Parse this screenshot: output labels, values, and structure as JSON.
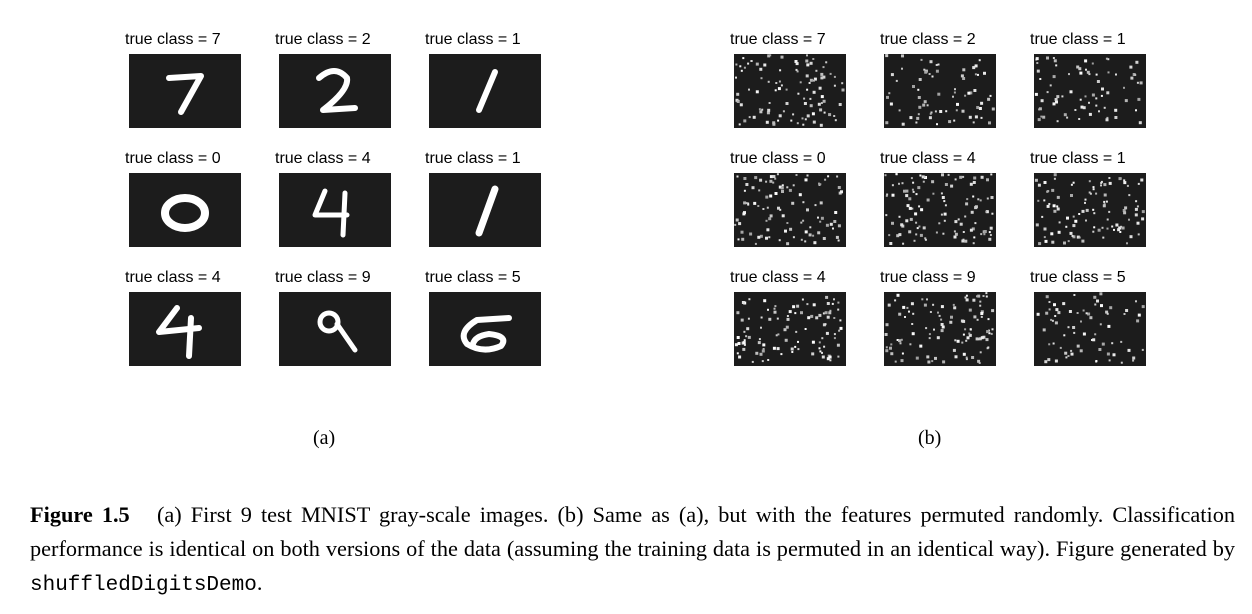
{
  "panel_a": {
    "caption": "(a)",
    "images": [
      {
        "label": "true class = 7",
        "digit": "7"
      },
      {
        "label": "true class = 2",
        "digit": "2"
      },
      {
        "label": "true class = 1",
        "digit": "1"
      },
      {
        "label": "true class = 0",
        "digit": "0"
      },
      {
        "label": "true class = 4",
        "digit": "4"
      },
      {
        "label": "true class = 1",
        "digit": "1"
      },
      {
        "label": "true class = 4",
        "digit": "4"
      },
      {
        "label": "true class = 9",
        "digit": "9"
      },
      {
        "label": "true class = 5",
        "digit": "5"
      }
    ]
  },
  "panel_b": {
    "caption": "(b)",
    "images": [
      {
        "label": "true class = 7"
      },
      {
        "label": "true class = 2"
      },
      {
        "label": "true class = 1"
      },
      {
        "label": "true class = 0"
      },
      {
        "label": "true class = 4"
      },
      {
        "label": "true class = 1"
      },
      {
        "label": "true class = 4"
      },
      {
        "label": "true class = 9"
      },
      {
        "label": "true class = 5"
      }
    ]
  },
  "caption": {
    "figure_label": "Figure 1.5",
    "text_before_code": "(a) First 9 test MNIST gray-scale images. (b) Same as (a), but with the features permuted randomly. Classification performance is identical on both versions of the data (assuming the training data is permuted in an identical way). Figure generated by",
    "code": "shuffledDigitsDemo",
    "text_after_code": "."
  },
  "colors": {
    "image_background": "#1c1c1c",
    "stroke": "#ffffff"
  }
}
